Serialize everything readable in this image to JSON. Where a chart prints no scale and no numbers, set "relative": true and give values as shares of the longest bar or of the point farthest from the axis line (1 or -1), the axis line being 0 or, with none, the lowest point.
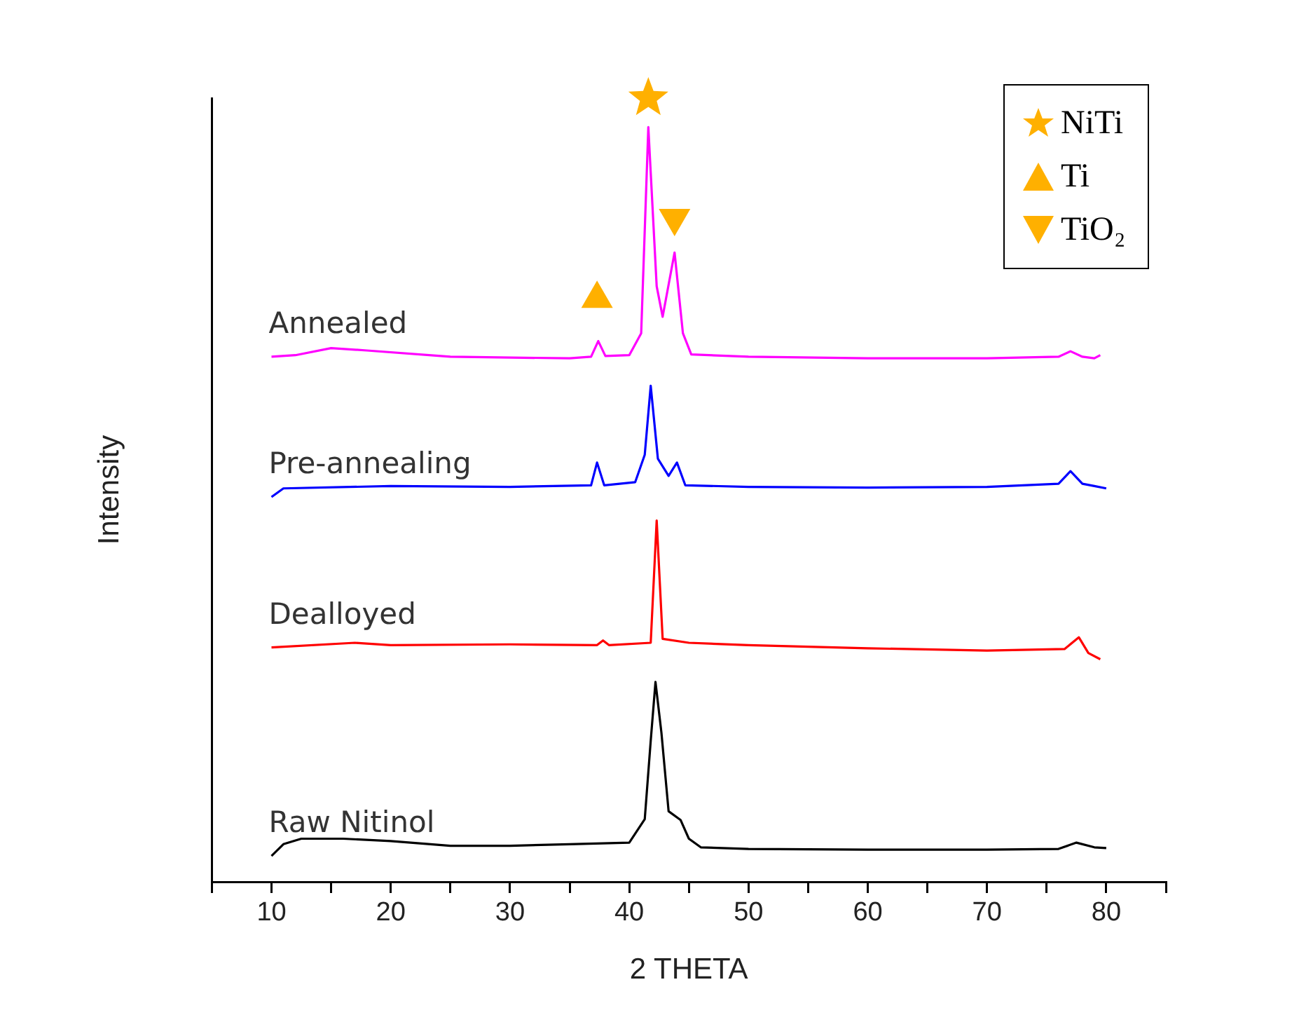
{
  "chart_data": {
    "type": "line",
    "xlabel": "2 THETA",
    "ylabel": "Intensity",
    "relative": true,
    "grid": false,
    "legend": "top right",
    "xlim": [
      5,
      85
    ],
    "xticks": [
      {
        "value": 5,
        "label": null
      },
      10,
      {
        "value": 15,
        "label": null
      },
      20,
      {
        "value": 25,
        "label": null
      },
      30,
      {
        "value": 35,
        "label": null
      },
      40,
      {
        "value": 45,
        "label": null
      },
      50,
      {
        "value": 55,
        "label": null
      },
      60,
      {
        "value": 65,
        "label": null
      },
      70,
      {
        "value": 75,
        "label": null
      },
      80,
      {
        "value": 85,
        "label": null
      }
    ],
    "series": [
      {
        "name": "Annealed",
        "color": "#ff00ff",
        "x": [
          10,
          12,
          15,
          18,
          25,
          35,
          36.8,
          37.4,
          38,
          40,
          41.0,
          41.6,
          42.3,
          42.8,
          43.8,
          44.5,
          45.2,
          50,
          60,
          70,
          76,
          77,
          78,
          79,
          79.5
        ],
        "values": [
          0.67,
          0.672,
          0.681,
          0.678,
          0.67,
          0.668,
          0.67,
          0.69,
          0.671,
          0.672,
          0.7,
          0.963,
          0.76,
          0.721,
          0.803,
          0.7,
          0.673,
          0.67,
          0.668,
          0.668,
          0.67,
          0.677,
          0.67,
          0.668,
          0.672
        ]
      },
      {
        "name": "Pre-annealing",
        "color": "#0000ff",
        "x": [
          10,
          11,
          20,
          30,
          36.8,
          37.3,
          37.9,
          40.5,
          41.3,
          41.8,
          42.4,
          43.3,
          44,
          44.7,
          50,
          60,
          70,
          76,
          77,
          78,
          79,
          80
        ],
        "values": [
          0.491,
          0.502,
          0.505,
          0.504,
          0.506,
          0.535,
          0.506,
          0.51,
          0.545,
          0.633,
          0.54,
          0.518,
          0.535,
          0.506,
          0.504,
          0.503,
          0.504,
          0.508,
          0.524,
          0.508,
          0.505,
          0.502
        ]
      },
      {
        "name": "Dealloyed",
        "color": "#ff0000",
        "x": [
          10,
          17,
          20,
          30,
          37.3,
          37.8,
          38.3,
          41.8,
          42.3,
          42.8,
          45,
          50,
          60,
          70,
          76.5,
          77.7,
          78.5,
          79.5
        ],
        "values": [
          0.299,
          0.305,
          0.302,
          0.303,
          0.302,
          0.308,
          0.302,
          0.305,
          0.461,
          0.31,
          0.305,
          0.302,
          0.298,
          0.295,
          0.297,
          0.312,
          0.292,
          0.284
        ]
      },
      {
        "name": "Raw Nitinol",
        "color": "#000000",
        "x": [
          10,
          11,
          12.5,
          16,
          20,
          25,
          30,
          35,
          40,
          41.3,
          41.8,
          42.2,
          42.7,
          43.3,
          44.3,
          45,
          46,
          50,
          60,
          70,
          76,
          77.5,
          79,
          80
        ],
        "values": [
          0.033,
          0.048,
          0.055,
          0.055,
          0.052,
          0.046,
          0.046,
          0.048,
          0.05,
          0.08,
          0.18,
          0.255,
          0.19,
          0.09,
          0.079,
          0.055,
          0.044,
          0.042,
          0.041,
          0.041,
          0.042,
          0.05,
          0.044,
          0.043
        ]
      },
      {
        "name": "NiTi",
        "type": "scatter",
        "marker": "star",
        "color": "#ffb000",
        "x": [
          41.6
        ],
        "values": [
          1.0
        ]
      },
      {
        "name": "Ti",
        "type": "scatter",
        "marker": "triangle",
        "color": "#ffb000",
        "x": [
          37.3
        ],
        "values": [
          0.744
        ]
      },
      {
        "name": "TiO₂",
        "type": "scatter",
        "marker": "triangle-down",
        "color": "#ffb000",
        "x": [
          43.8
        ],
        "values": [
          0.847
        ]
      }
    ]
  }
}
